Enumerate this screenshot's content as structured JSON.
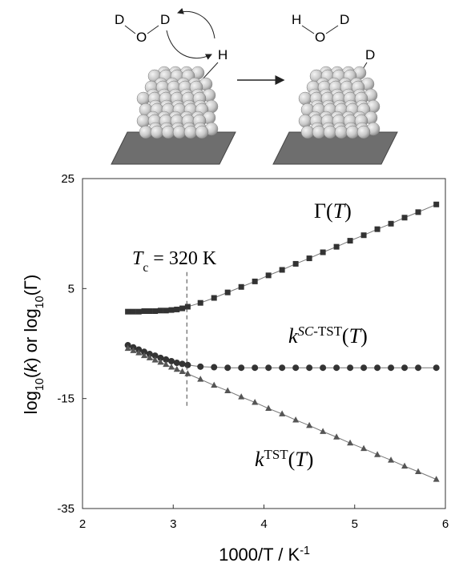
{
  "scheme": {
    "left_molecule": [
      "D",
      "O",
      "D"
    ],
    "left_surface_atom": "H",
    "right_molecule": [
      "H",
      "O",
      "D"
    ],
    "right_surface_atom": "D"
  },
  "chart_data": {
    "type": "scatter",
    "xlabel": [
      {
        "text": "1000/T / K",
        "style": "normal"
      },
      {
        "text": "-1",
        "style": "sup"
      }
    ],
    "ylabel": [
      {
        "text": "log",
        "style": "normal"
      },
      {
        "text": "10",
        "style": "sub"
      },
      {
        "text": "(",
        "style": "normal"
      },
      {
        "text": "k",
        "style": "italic"
      },
      {
        "text": ") or log",
        "style": "normal"
      },
      {
        "text": "10",
        "style": "sub"
      },
      {
        "text": "(Γ)",
        "style": "normal"
      }
    ],
    "xlim": [
      2,
      6
    ],
    "xticks": [
      2,
      3,
      4,
      5,
      6
    ],
    "ylim": [
      -35,
      25
    ],
    "yticks": [
      -35,
      -15,
      5,
      25
    ],
    "x": [
      2.5,
      2.56,
      2.62,
      2.68,
      2.74,
      2.8,
      2.86,
      2.92,
      2.98,
      3.04,
      3.1,
      3.16,
      3.3,
      3.45,
      3.6,
      3.75,
      3.9,
      4.05,
      4.2,
      4.35,
      4.5,
      4.65,
      4.8,
      4.95,
      5.1,
      5.25,
      5.4,
      5.55,
      5.7,
      5.9
    ],
    "series": [
      {
        "label": [
          {
            "text": "Γ(",
            "style": "normal"
          },
          {
            "text": "T",
            "style": "italic"
          },
          {
            "text": ")",
            "style": "normal"
          }
        ],
        "marker": "square",
        "color": "#333333",
        "values": [
          0.8,
          0.8,
          0.8,
          0.9,
          0.9,
          0.9,
          1.0,
          1.0,
          1.1,
          1.2,
          1.4,
          1.7,
          2.4,
          3.3,
          4.3,
          5.3,
          6.3,
          7.4,
          8.4,
          9.5,
          10.5,
          11.6,
          12.6,
          13.7,
          14.7,
          15.8,
          16.8,
          17.9,
          18.9,
          20.3
        ]
      },
      {
        "label": [
          {
            "text": "k",
            "style": "italic"
          },
          {
            "text": "SC",
            "style": "sup-italic"
          },
          {
            "text": "-TST",
            "style": "sup"
          },
          {
            "text": "(",
            "style": "normal"
          },
          {
            "text": "T",
            "style": "italic"
          },
          {
            "text": ")",
            "style": "normal"
          }
        ],
        "marker": "circle",
        "color": "#333333",
        "values": [
          -5.3,
          -5.7,
          -6.1,
          -6.5,
          -6.9,
          -7.2,
          -7.6,
          -7.9,
          -8.2,
          -8.5,
          -8.7,
          -8.9,
          -9.2,
          -9.3,
          -9.4,
          -9.4,
          -9.4,
          -9.4,
          -9.4,
          -9.4,
          -9.4,
          -9.4,
          -9.4,
          -9.4,
          -9.4,
          -9.4,
          -9.4,
          -9.4,
          -9.4,
          -9.4
        ]
      },
      {
        "label": [
          {
            "text": "k",
            "style": "italic"
          },
          {
            "text": "TST",
            "style": "sup"
          },
          {
            "text": "(",
            "style": "normal"
          },
          {
            "text": "T",
            "style": "italic"
          },
          {
            "text": ")",
            "style": "normal"
          }
        ],
        "marker": "triangle",
        "color": "#555555",
        "values": [
          -5.9,
          -6.3,
          -6.7,
          -7.2,
          -7.6,
          -8.0,
          -8.4,
          -8.8,
          -9.3,
          -9.7,
          -10.1,
          -10.5,
          -11.5,
          -12.6,
          -13.6,
          -14.7,
          -15.7,
          -16.8,
          -17.8,
          -18.9,
          -19.9,
          -21.0,
          -22.0,
          -23.1,
          -24.1,
          -25.2,
          -26.2,
          -27.3,
          -28.3,
          -29.7
        ]
      }
    ],
    "annotation": {
      "text": [
        {
          "text": "T",
          "style": "italic"
        },
        {
          "text": "c",
          "style": "sub"
        },
        {
          "text": " = 320 K",
          "style": "normal"
        }
      ],
      "x": 3.15,
      "y": [
        8,
        -16.7
      ]
    }
  }
}
